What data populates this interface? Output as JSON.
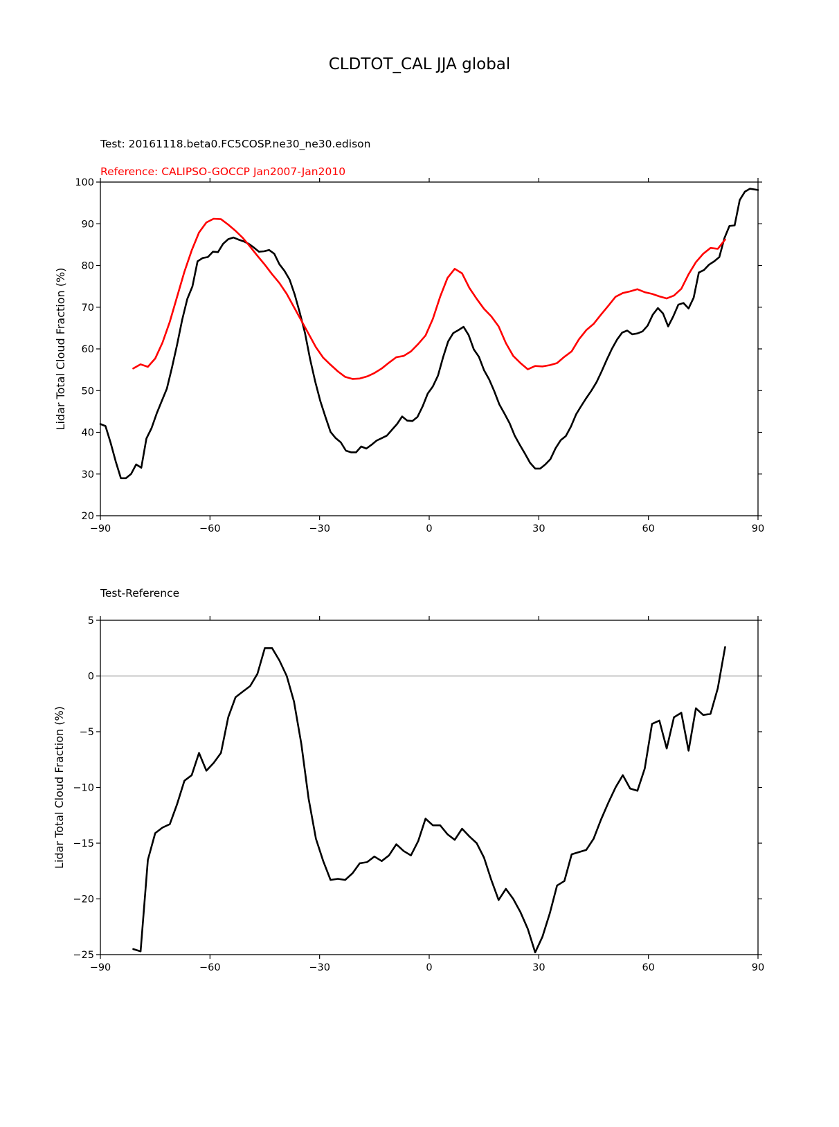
{
  "figure_title": "CLDTOT_CAL JJA global",
  "colors": {
    "test": "#000000",
    "reference": "#ff0000",
    "zero_line": "#999999",
    "axes": "#000000"
  },
  "chart_data": [
    {
      "type": "line",
      "subtitle_test": "Test: 20161118.beta0.FC5COSP.ne30_ne30.edison",
      "subtitle_ref": "Reference: CALIPSO-GOCCP Jan2007-Jan2010",
      "xlabel": "",
      "ylabel": "Lidar Total Cloud Fraction (%)",
      "xlim": [
        -90,
        90
      ],
      "ylim": [
        20,
        100
      ],
      "xticks": [
        -90,
        -60,
        -30,
        0,
        30,
        60,
        90
      ],
      "xtick_labels": [
        "−90",
        "−60",
        "−30",
        "0",
        "30",
        "60",
        "90"
      ],
      "yticks": [
        20,
        30,
        40,
        50,
        60,
        70,
        80,
        90,
        100
      ],
      "ytick_labels": [
        "20",
        "30",
        "40",
        "50",
        "60",
        "70",
        "80",
        "90",
        "100"
      ],
      "series": [
        {
          "name": "Test",
          "color": "#000000",
          "x": [
            -90,
            -88.6,
            -87.2,
            -85.8,
            -84.4,
            -83,
            -81.6,
            -80.2,
            -78.8,
            -77.4,
            -76,
            -74.6,
            -73.2,
            -71.8,
            -70.4,
            -69,
            -67.6,
            -66.2,
            -64.8,
            -63.4,
            -62,
            -60.6,
            -59.2,
            -57.8,
            -56.4,
            -55,
            -53.6,
            -52.2,
            -50.8,
            -49.4,
            -48,
            -46.6,
            -45.2,
            -43.8,
            -42.4,
            -41,
            -39.6,
            -38.2,
            -36.8,
            -35.4,
            -34,
            -32.6,
            -31.2,
            -29.8,
            -28.4,
            -27,
            -25.6,
            -24.2,
            -22.8,
            -21.4,
            -20,
            -18.6,
            -17.2,
            -15.8,
            -14.4,
            -13,
            -11.6,
            -10.2,
            -8.8,
            -7.4,
            -6,
            -4.6,
            -3.2,
            -1.8,
            -0.4,
            1,
            2.4,
            3.8,
            5.2,
            6.6,
            8,
            9.4,
            10.8,
            12.2,
            13.6,
            15,
            16.4,
            17.8,
            19.2,
            20.6,
            22,
            23.4,
            24.8,
            26.2,
            27.6,
            29,
            30.4,
            31.8,
            33.2,
            34.6,
            36,
            37.4,
            38.8,
            40.2,
            41.6,
            43,
            44.4,
            45.8,
            47.2,
            48.6,
            50,
            51.4,
            52.8,
            54.2,
            55.6,
            57,
            58.4,
            59.8,
            61.2,
            62.6,
            64,
            65.4,
            66.8,
            68.2,
            69.6,
            71,
            72.4,
            73.8,
            75.2,
            76.6,
            78,
            79.4,
            80.8,
            82.2,
            83.6,
            85,
            86.4,
            87.8,
            89.2,
            90
          ],
          "y": [
            42,
            41.5,
            37.5,
            33,
            29,
            29,
            30,
            32.3,
            31.5,
            38.5,
            41,
            44.5,
            47.5,
            50.5,
            55.5,
            61,
            67,
            72,
            75,
            81,
            81.8,
            82,
            83.3,
            83.2,
            85.2,
            86.3,
            86.7,
            86.2,
            85.8,
            85.2,
            84.3,
            83.3,
            83.4,
            83.7,
            82.8,
            80.3,
            78.7,
            76.6,
            73,
            68.6,
            63.8,
            57.6,
            52.2,
            47.5,
            43.7,
            40.1,
            38.6,
            37.6,
            35.6,
            35.2,
            35.2,
            36.6,
            36.1,
            37,
            38,
            38.6,
            39.2,
            40.6,
            42,
            43.8,
            42.8,
            42.7,
            43.7,
            46.2,
            49.3,
            51,
            53.6,
            58,
            61.8,
            63.8,
            64.5,
            65.3,
            63.3,
            59.9,
            58.1,
            54.9,
            52.7,
            49.9,
            46.7,
            44.5,
            42.2,
            39.2,
            37,
            34.9,
            32.7,
            31.3,
            31.3,
            32.3,
            33.6,
            36.2,
            38.1,
            39.1,
            41.4,
            44.3,
            46.3,
            48.2,
            50,
            52,
            54.6,
            57.4,
            60,
            62.2,
            63.9,
            64.4,
            63.5,
            63.7,
            64.2,
            65.6,
            68.2,
            69.8,
            68.5,
            65.4,
            67.8,
            70.6,
            71,
            69.7,
            72.3,
            78.3,
            78.9,
            80.2,
            81,
            82,
            86.5,
            89.5,
            89.6,
            95.7,
            97.7,
            98.4,
            98.2,
            98.1
          ]
        },
        {
          "name": "Reference",
          "color": "#ff0000",
          "x": [
            -81,
            -79,
            -77,
            -75,
            -73,
            -71,
            -69,
            -67,
            -65,
            -63,
            -61,
            -59,
            -57,
            -55,
            -53,
            -51,
            -49,
            -47,
            -45,
            -43,
            -41,
            -39,
            -37,
            -35,
            -33,
            -31,
            -29,
            -27,
            -25,
            -23,
            -21,
            -19,
            -17,
            -15,
            -13,
            -11,
            -9,
            -7,
            -5,
            -3,
            -1,
            1,
            3,
            5,
            7,
            9,
            11,
            13,
            15,
            17,
            19,
            21,
            23,
            25,
            27,
            29,
            31,
            33,
            35,
            37,
            39,
            41,
            43,
            45,
            47,
            49,
            51,
            53,
            55,
            57,
            59,
            61,
            63,
            65,
            67,
            69,
            71,
            73,
            75,
            77,
            79,
            81
          ],
          "y": [
            55.3,
            56.3,
            55.7,
            57.7,
            61.5,
            66.5,
            72.5,
            78.5,
            83.6,
            87.9,
            90.3,
            91.2,
            91.1,
            89.8,
            88.3,
            86.6,
            84.5,
            82.3,
            80.2,
            77.9,
            75.8,
            73.2,
            70,
            66.8,
            63.6,
            60.4,
            57.9,
            56.2,
            54.6,
            53.3,
            52.8,
            52.9,
            53.4,
            54.2,
            55.3,
            56.7,
            58,
            58.3,
            59.4,
            61.2,
            63.2,
            67.2,
            72.5,
            77,
            79.2,
            78.1,
            74.6,
            72,
            69.6,
            67.8,
            65.4,
            61.4,
            58.3,
            56.6,
            55.1,
            55.9,
            55.8,
            56.1,
            56.6,
            58.1,
            59.4,
            62.3,
            64.5,
            66,
            68.2,
            70.3,
            72.5,
            73.4,
            73.8,
            74.3,
            73.6,
            73.2,
            72.6,
            72.1,
            72.8,
            74.4,
            77.9,
            80.8,
            82.8,
            84.2,
            84,
            86.2
          ]
        }
      ]
    },
    {
      "type": "line",
      "subtitle": "Test-Reference",
      "xlabel": "",
      "ylabel": "Lidar Total Cloud Fraction (%)",
      "xlim": [
        -90,
        90
      ],
      "ylim": [
        -25,
        5
      ],
      "reference_line": 0,
      "xticks": [
        -90,
        -60,
        -30,
        0,
        30,
        60,
        90
      ],
      "xtick_labels": [
        "−90",
        "−60",
        "−30",
        "0",
        "30",
        "60",
        "90"
      ],
      "yticks": [
        -25,
        -20,
        -15,
        -10,
        -5,
        0,
        5
      ],
      "ytick_labels": [
        "−25",
        "−20",
        "−15",
        "−10",
        "−5",
        "0",
        "5"
      ],
      "series": [
        {
          "name": "Test-Reference",
          "color": "#000000",
          "x": [
            -81,
            -79,
            -77,
            -75,
            -73,
            -71,
            -69,
            -67,
            -65,
            -63,
            -61,
            -59,
            -57,
            -55,
            -53,
            -51,
            -49,
            -47,
            -45,
            -43,
            -41,
            -39,
            -37,
            -35,
            -33,
            -31,
            -29,
            -27,
            -25,
            -23,
            -21,
            -19,
            -17,
            -15,
            -13,
            -11,
            -9,
            -7,
            -5,
            -3,
            -1,
            1,
            3,
            5,
            7,
            9,
            11,
            13,
            15,
            17,
            19,
            21,
            23,
            25,
            27,
            29,
            31,
            33,
            35,
            37,
            39,
            41,
            43,
            45,
            47,
            49,
            51,
            53,
            55,
            57,
            59,
            61,
            63,
            65,
            67,
            69,
            71,
            73,
            75,
            77,
            79,
            81
          ],
          "y": [
            -24.5,
            -24.7,
            -16.5,
            -14.1,
            -13.6,
            -13.3,
            -11.5,
            -9.4,
            -8.9,
            -6.9,
            -8.5,
            -7.8,
            -6.9,
            -3.7,
            -1.9,
            -1.4,
            -0.9,
            0.2,
            2.5,
            2.5,
            1.4,
            0,
            -2.3,
            -6.1,
            -11,
            -14.6,
            -16.6,
            -18.3,
            -18.2,
            -18.3,
            -17.7,
            -16.8,
            -16.7,
            -16.2,
            -16.6,
            -16.1,
            -15.1,
            -15.7,
            -16.1,
            -14.8,
            -12.8,
            -13.4,
            -13.4,
            -14.2,
            -14.7,
            -13.7,
            -14.4,
            -15,
            -16.3,
            -18.3,
            -20.1,
            -19.1,
            -20,
            -21.2,
            -22.7,
            -24.8,
            -23.4,
            -21.3,
            -18.8,
            -18.4,
            -16,
            -15.8,
            -15.6,
            -14.6,
            -12.9,
            -11.4,
            -10,
            -8.9,
            -10.1,
            -10.3,
            -8.3,
            -4.3,
            -4,
            -6.5,
            -3.7,
            -3.3,
            -6.7,
            -2.9,
            -3.5,
            -3.4,
            -1.1,
            2.6
          ]
        }
      ]
    }
  ]
}
